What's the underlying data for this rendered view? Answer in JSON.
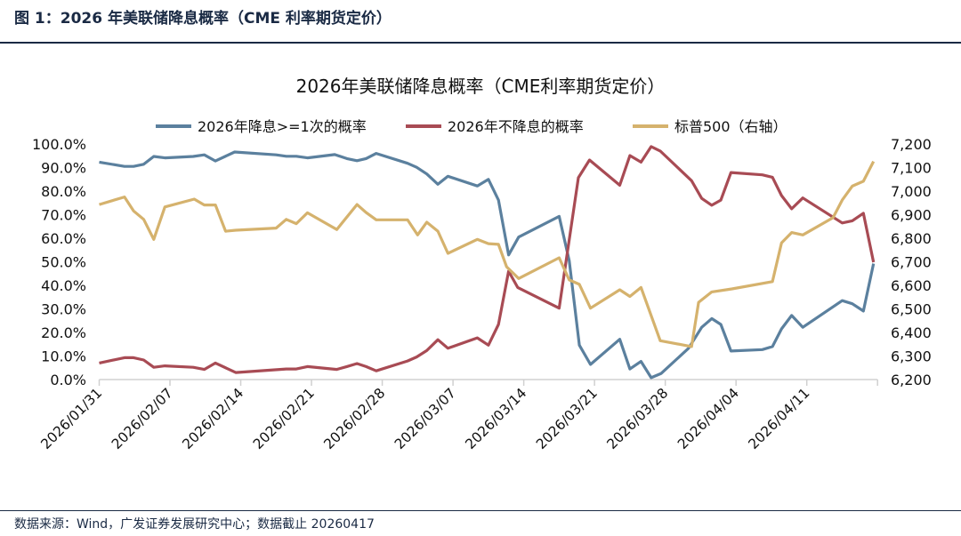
{
  "header": {
    "title": "图 1：2026 年美联储降息概率（CME 利率期货定价）"
  },
  "footer": {
    "source": "数据来源：Wind，广发证券发展研究中心；数据截止 20260417"
  },
  "chart_data": {
    "type": "line",
    "title": "2026年美联储降息概率（CME利率期货定价）",
    "x_unit": "days since 2026/01/31",
    "x_origin": "2026/01/31",
    "xlim": [
      0,
      77
    ],
    "x_ticks": [
      {
        "day": 0,
        "label": "2026/01/31"
      },
      {
        "day": 7,
        "label": "2026/02/07"
      },
      {
        "day": 14,
        "label": "2026/02/14"
      },
      {
        "day": 21,
        "label": "2026/02/21"
      },
      {
        "day": 28,
        "label": "2026/02/28"
      },
      {
        "day": 35,
        "label": "2026/03/07"
      },
      {
        "day": 42,
        "label": "2026/03/14"
      },
      {
        "day": 49,
        "label": "2026/03/21"
      },
      {
        "day": 56,
        "label": "2026/03/28"
      },
      {
        "day": 63,
        "label": "2026/04/04"
      },
      {
        "day": 70,
        "label": "2026/04/11"
      }
    ],
    "y_left": {
      "ylim": [
        0,
        100
      ],
      "ticks": [
        "0.0%",
        "10.0%",
        "20.0%",
        "30.0%",
        "40.0%",
        "50.0%",
        "60.0%",
        "70.0%",
        "80.0%",
        "90.0%",
        "100.0%"
      ]
    },
    "y_right": {
      "ylim": [
        6200,
        7200
      ],
      "ticks": [
        "6,200",
        "6,300",
        "6,400",
        "6,500",
        "6,600",
        "6,700",
        "6,800",
        "6,900",
        "7,000",
        "7,100",
        "7,200"
      ]
    },
    "legend_position": "top",
    "series": [
      {
        "name": "2026年降息>=1次的概率",
        "axis": "left",
        "color": "#5b809e",
        "points": [
          [
            0,
            92.3
          ],
          [
            2.5,
            90.5
          ],
          [
            3.4,
            90.5
          ],
          [
            4.4,
            91.4
          ],
          [
            5.4,
            94.7
          ],
          [
            6.5,
            94.1
          ],
          [
            9.3,
            94.7
          ],
          [
            10.4,
            95.4
          ],
          [
            11.5,
            92.8
          ],
          [
            13.4,
            96.6
          ],
          [
            17.5,
            95.4
          ],
          [
            18.5,
            94.8
          ],
          [
            19.5,
            94.8
          ],
          [
            20.6,
            94.1
          ],
          [
            23.3,
            95.5
          ],
          [
            24.5,
            93.8
          ],
          [
            25.5,
            92.9
          ],
          [
            26.4,
            93.8
          ],
          [
            27.4,
            96.0
          ],
          [
            30.5,
            91.8
          ],
          [
            31.4,
            90.1
          ],
          [
            32.4,
            87.3
          ],
          [
            33.5,
            82.9
          ],
          [
            34.5,
            86.3
          ],
          [
            37.4,
            82.2
          ],
          [
            38.5,
            85.0
          ],
          [
            39.5,
            76.2
          ],
          [
            40.5,
            52.9
          ],
          [
            41.5,
            60.5
          ],
          [
            45.5,
            69.3
          ],
          [
            46.5,
            50.5
          ],
          [
            47.5,
            14.6
          ],
          [
            48.6,
            6.4
          ],
          [
            51.5,
            17.1
          ],
          [
            52.5,
            4.5
          ],
          [
            53.6,
            7.7
          ],
          [
            54.6,
            0.8
          ],
          [
            55.6,
            2.6
          ],
          [
            58.3,
            13.3
          ],
          [
            59.6,
            22.2
          ],
          [
            60.6,
            25.9
          ],
          [
            61.5,
            23.4
          ],
          [
            62.5,
            12.1
          ],
          [
            65.6,
            12.7
          ],
          [
            66.6,
            14.0
          ],
          [
            67.5,
            21.5
          ],
          [
            68.5,
            27.2
          ],
          [
            69.6,
            22.2
          ],
          [
            73.5,
            33.5
          ],
          [
            74.5,
            32.2
          ],
          [
            75.6,
            29.1
          ],
          [
            76.6,
            49.2
          ]
        ]
      },
      {
        "name": "2026年不降息的概率",
        "axis": "left",
        "color": "#a84b54",
        "points": [
          [
            0,
            7.0
          ],
          [
            2.5,
            9.3
          ],
          [
            3.4,
            9.3
          ],
          [
            4.4,
            8.3
          ],
          [
            5.4,
            5.2
          ],
          [
            6.5,
            5.8
          ],
          [
            9.3,
            5.2
          ],
          [
            10.4,
            4.3
          ],
          [
            11.5,
            7.0
          ],
          [
            13.5,
            3.0
          ],
          [
            18.5,
            4.5
          ],
          [
            19.5,
            4.5
          ],
          [
            20.6,
            5.5
          ],
          [
            23.5,
            4.3
          ],
          [
            24.5,
            5.5
          ],
          [
            25.5,
            6.8
          ],
          [
            26.4,
            5.5
          ],
          [
            27.4,
            3.7
          ],
          [
            30.5,
            7.9
          ],
          [
            31.4,
            9.6
          ],
          [
            32.4,
            12.3
          ],
          [
            33.5,
            16.9
          ],
          [
            34.5,
            13.3
          ],
          [
            37.4,
            17.7
          ],
          [
            38.5,
            14.6
          ],
          [
            39.5,
            23.4
          ],
          [
            40.5,
            46.0
          ],
          [
            41.4,
            39.1
          ],
          [
            45.5,
            30.3
          ],
          [
            47.4,
            85.7
          ],
          [
            48.5,
            93.2
          ],
          [
            51.5,
            82.5
          ],
          [
            52.5,
            95.1
          ],
          [
            53.6,
            92.3
          ],
          [
            54.6,
            98.9
          ],
          [
            55.5,
            97.0
          ],
          [
            58.6,
            84.4
          ],
          [
            59.6,
            76.9
          ],
          [
            60.6,
            74.0
          ],
          [
            61.5,
            76.2
          ],
          [
            62.5,
            87.9
          ],
          [
            65.6,
            86.9
          ],
          [
            66.6,
            85.9
          ],
          [
            67.5,
            78.1
          ],
          [
            68.5,
            72.5
          ],
          [
            69.6,
            77.1
          ],
          [
            73.5,
            66.5
          ],
          [
            74.5,
            67.4
          ],
          [
            75.6,
            70.6
          ],
          [
            76.6,
            49.8
          ]
        ]
      },
      {
        "name": "标普500（右轴）",
        "axis": "right",
        "color": "#d5b26d",
        "points": [
          [
            0,
            6943
          ],
          [
            2.5,
            6975
          ],
          [
            3.4,
            6916
          ],
          [
            4.4,
            6880
          ],
          [
            5.4,
            6795
          ],
          [
            6.5,
            6933
          ],
          [
            9.4,
            6966
          ],
          [
            10.4,
            6941
          ],
          [
            11.5,
            6941
          ],
          [
            12.5,
            6830
          ],
          [
            13.5,
            6834
          ],
          [
            17.5,
            6843
          ],
          [
            18.5,
            6880
          ],
          [
            19.5,
            6862
          ],
          [
            20.6,
            6908
          ],
          [
            23.5,
            6837
          ],
          [
            25.5,
            6943
          ],
          [
            26.4,
            6909
          ],
          [
            27.4,
            6878
          ],
          [
            30.5,
            6878
          ],
          [
            31.5,
            6814
          ],
          [
            32.4,
            6868
          ],
          [
            33.5,
            6830
          ],
          [
            34.5,
            6736
          ],
          [
            37.4,
            6795
          ],
          [
            38.5,
            6777
          ],
          [
            39.5,
            6774
          ],
          [
            40.3,
            6679
          ],
          [
            41.5,
            6629
          ],
          [
            45.5,
            6717
          ],
          [
            46.5,
            6623
          ],
          [
            47.5,
            6604
          ],
          [
            48.6,
            6503
          ],
          [
            51.5,
            6581
          ],
          [
            52.5,
            6553
          ],
          [
            53.6,
            6591
          ],
          [
            55.5,
            6365
          ],
          [
            58.6,
            6340
          ],
          [
            59.3,
            6528
          ],
          [
            60.6,
            6572
          ],
          [
            62.6,
            6585
          ],
          [
            66.6,
            6616
          ],
          [
            67.5,
            6780
          ],
          [
            68.5,
            6824
          ],
          [
            69.6,
            6814
          ],
          [
            72.6,
            6887
          ],
          [
            73.5,
            6962
          ],
          [
            74.5,
            7021
          ],
          [
            75.6,
            7042
          ],
          [
            76.6,
            7126
          ]
        ]
      }
    ]
  }
}
